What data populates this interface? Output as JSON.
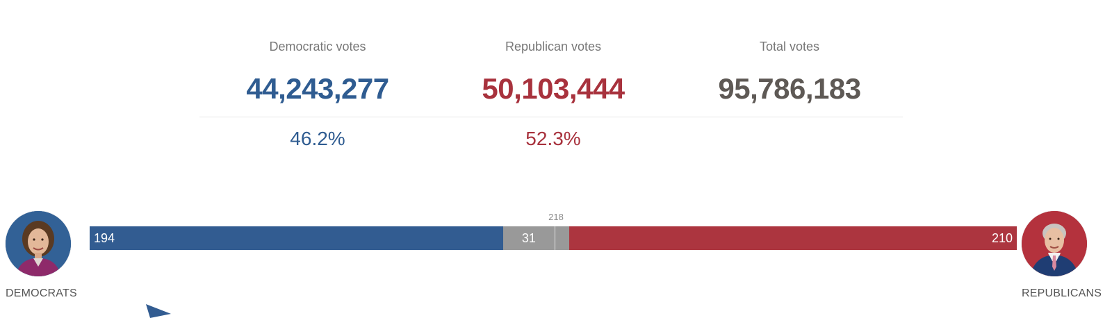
{
  "totals": {
    "democratic": {
      "label": "Democratic votes",
      "count": "44,243,277",
      "percent": "46.2%"
    },
    "republican": {
      "label": "Republican votes",
      "count": "50,103,444",
      "percent": "52.3%"
    },
    "total": {
      "label": "Total votes",
      "count": "95,786,183"
    }
  },
  "seats": {
    "majority_label": "218",
    "democrats": {
      "name": "DEMOCRATS",
      "seats": 194,
      "seats_label": "194",
      "color": "#325c91"
    },
    "undecided": {
      "seats": 31,
      "seats_label": "31",
      "color": "#999999"
    },
    "republicans": {
      "name": "REPUBLICANS",
      "seats": 210,
      "seats_label": "210",
      "color": "#ac353f"
    },
    "total_seats": 435,
    "majority": 218
  },
  "icons": {
    "dem_avatar": "pelosi-portrait-icon",
    "rep_avatar": "mccarthy-portrait-icon",
    "arrow": "pointer-arrow-icon"
  }
}
